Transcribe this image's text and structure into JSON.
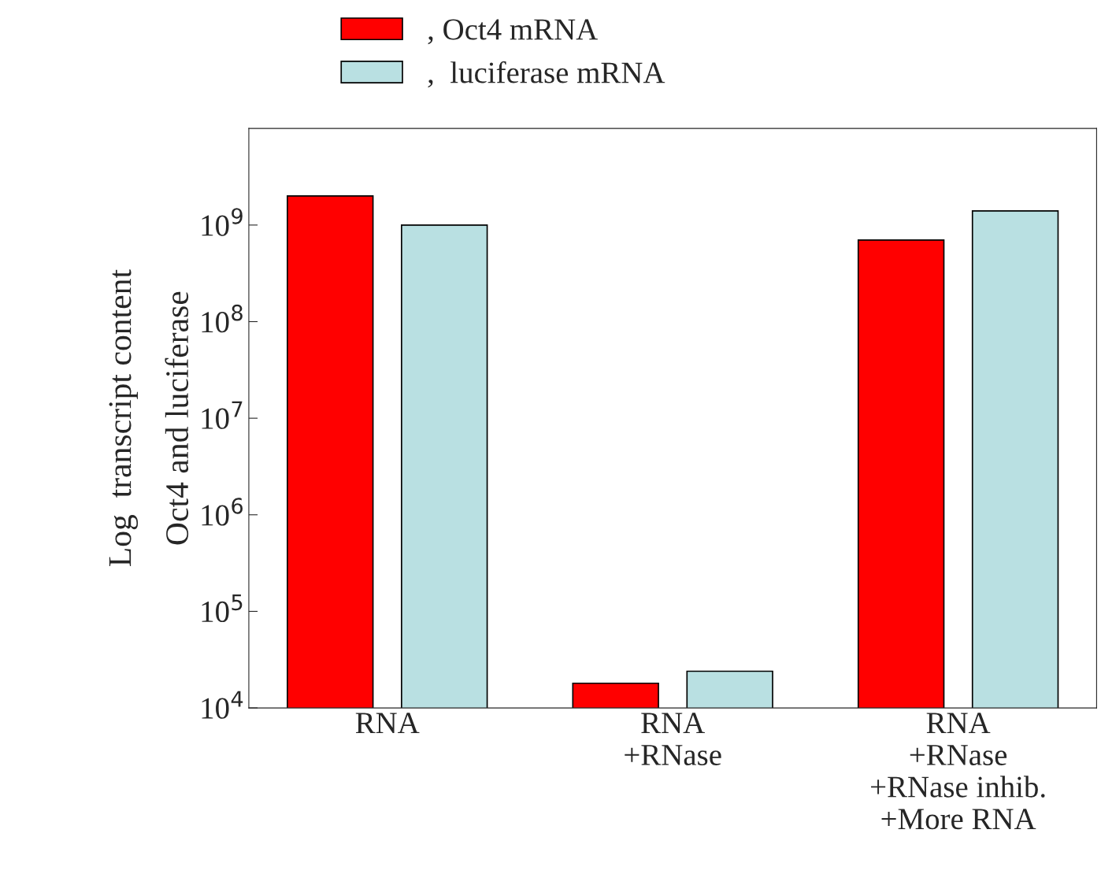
{
  "chart_data": {
    "type": "bar",
    "ylabel": "Log  transcript content\nOct4 and luciferase",
    "categories": [
      "RNA",
      "RNA\n+RNase",
      "RNA\n+RNase\n+RNase inhib.\n+More RNA"
    ],
    "series": [
      {
        "name": ", Oct4 mRNA",
        "color": "#ff0000",
        "values": [
          2000000000,
          18000,
          700000000
        ]
      },
      {
        "name": ",  luciferase mRNA",
        "color": "#b9e0e2",
        "values": [
          1000000000,
          24000,
          1400000000
        ]
      }
    ],
    "log": true,
    "ylim": [
      10000,
      10000000000
    ],
    "yticks": [
      {
        "value": 10000,
        "label": "10$^{4}$"
      },
      {
        "value": 100000,
        "label": "10$^{5}$"
      },
      {
        "value": 1000000,
        "label": "10$^{6}$"
      },
      {
        "value": 10000000,
        "label": "10$^{7}$"
      },
      {
        "value": 100000000,
        "label": "10$^{8}$"
      },
      {
        "value": 1000000000,
        "label": "10$^{9}$"
      }
    ],
    "grid": false,
    "legend": "top"
  }
}
